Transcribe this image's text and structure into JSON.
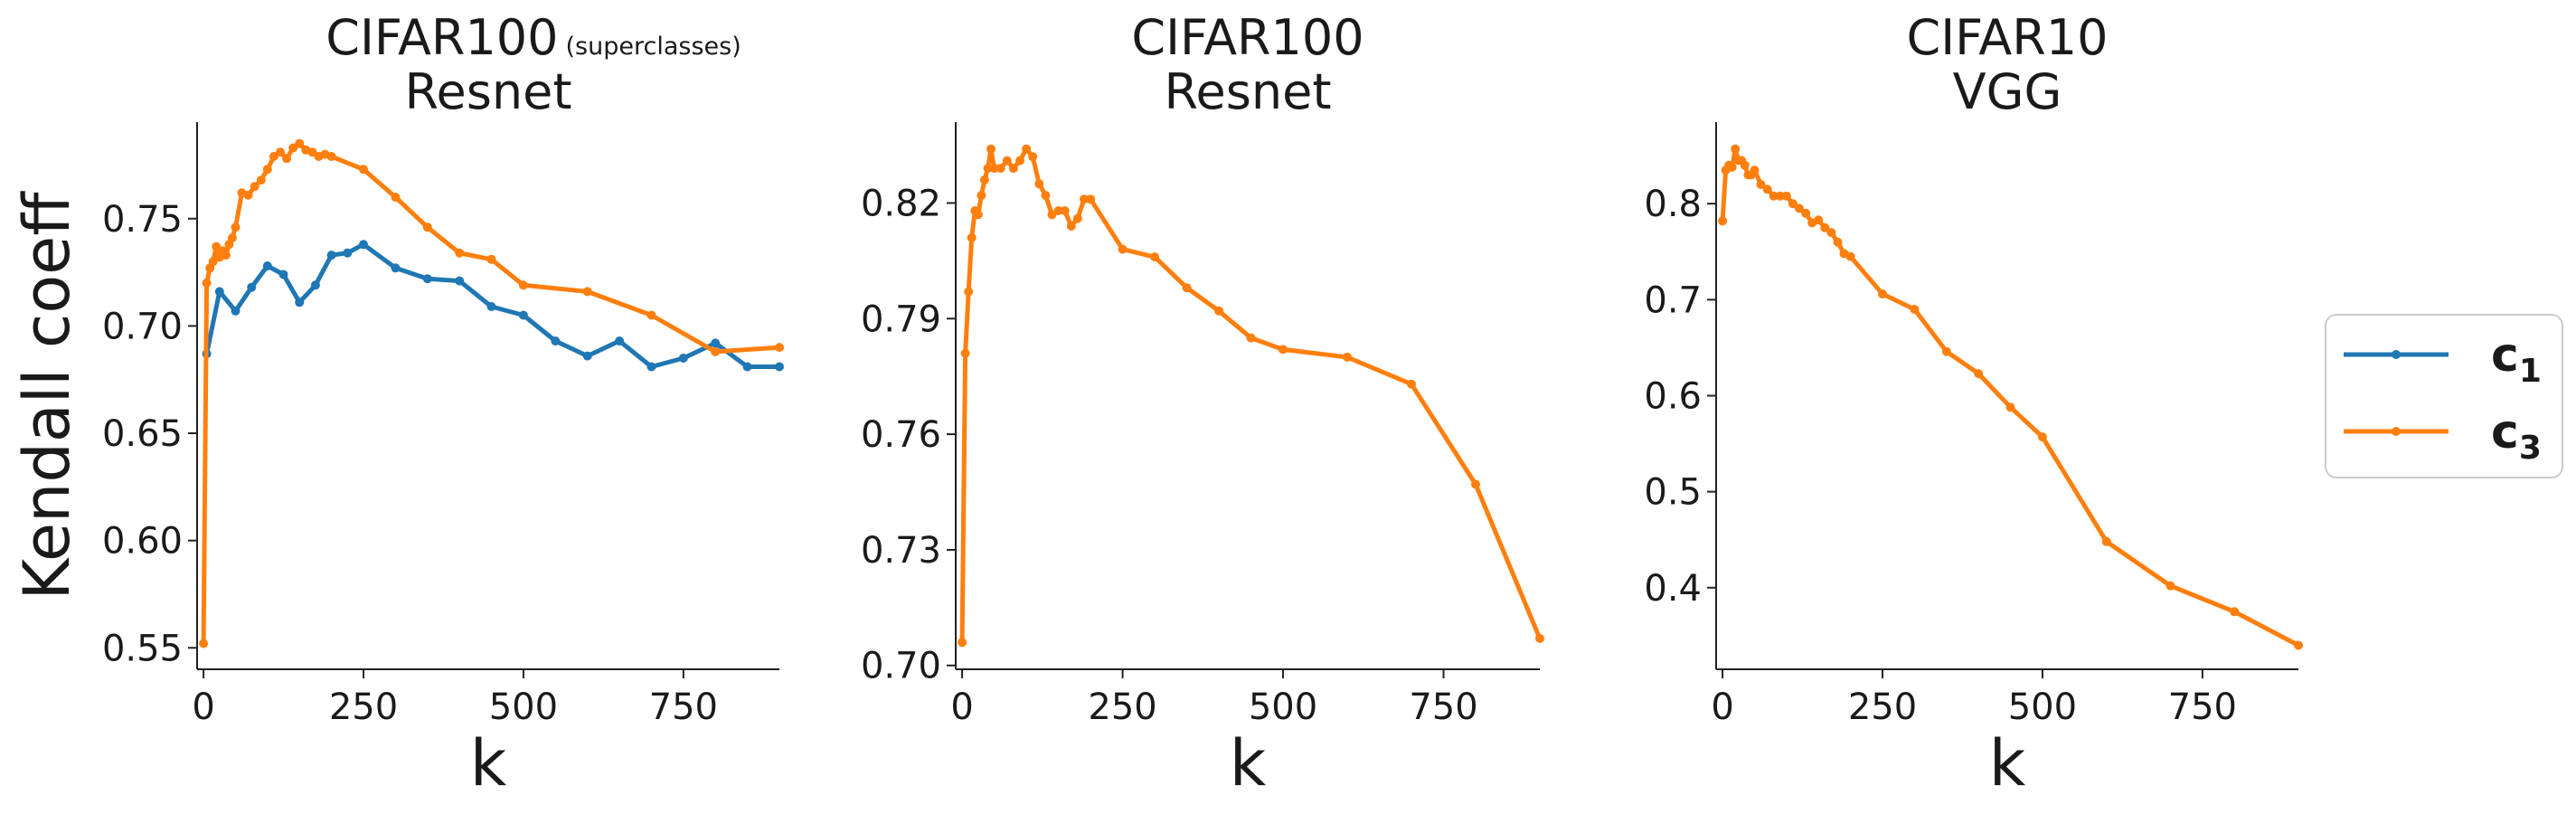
{
  "colors": {
    "c1": "#1f77b4",
    "c3": "#ff7f0e",
    "axis": "#222222"
  },
  "figure": {
    "ylabel": "Kendall coeff"
  },
  "legend": {
    "placement": "right",
    "entries": [
      {
        "key": "c1",
        "base": "c",
        "sub": "1"
      },
      {
        "key": "c3",
        "base": "c",
        "sub": "3"
      }
    ]
  },
  "chart_data": [
    {
      "type": "line",
      "title": "CIFAR100",
      "title_suffix": "(superclasses)",
      "subtitle": "Resnet",
      "xlabel": "k",
      "xlim": [
        -10,
        900
      ],
      "ylim": [
        0.54,
        0.795
      ],
      "xticks": [
        0,
        250,
        500,
        750
      ],
      "yticks": [
        0.55,
        0.6,
        0.65,
        0.7,
        0.75
      ],
      "ytick_labels": [
        "0.55",
        "0.60",
        "0.65",
        "0.70",
        "0.75"
      ],
      "series": [
        {
          "key": "c1",
          "x": [
            5,
            25,
            50,
            75,
            100,
            125,
            150,
            175,
            200,
            225,
            250,
            300,
            350,
            400,
            450,
            500,
            550,
            600,
            650,
            700,
            750,
            800,
            850,
            900
          ],
          "y": [
            0.687,
            0.716,
            0.707,
            0.718,
            0.728,
            0.724,
            0.711,
            0.719,
            0.733,
            0.734,
            0.738,
            0.727,
            0.722,
            0.721,
            0.709,
            0.705,
            0.693,
            0.686,
            0.693,
            0.681,
            0.685,
            0.692,
            0.681,
            0.681
          ]
        },
        {
          "key": "c3",
          "x": [
            0,
            5,
            10,
            15,
            20,
            25,
            30,
            35,
            40,
            45,
            50,
            60,
            70,
            80,
            90,
            100,
            110,
            120,
            130,
            140,
            150,
            160,
            170,
            180,
            190,
            200,
            250,
            300,
            350,
            400,
            450,
            500,
            600,
            700,
            800,
            900
          ],
          "y": [
            0.552,
            0.72,
            0.727,
            0.73,
            0.737,
            0.732,
            0.735,
            0.733,
            0.738,
            0.741,
            0.746,
            0.762,
            0.761,
            0.765,
            0.768,
            0.773,
            0.779,
            0.781,
            0.778,
            0.783,
            0.785,
            0.782,
            0.781,
            0.779,
            0.78,
            0.779,
            0.773,
            0.76,
            0.746,
            0.734,
            0.731,
            0.719,
            0.716,
            0.705,
            0.688,
            0.69
          ]
        }
      ]
    },
    {
      "type": "line",
      "title": "CIFAR100",
      "subtitle": "Resnet",
      "xlabel": "k",
      "xlim": [
        -10,
        900
      ],
      "ylim": [
        0.699,
        0.841
      ],
      "xticks": [
        0,
        250,
        500,
        750
      ],
      "yticks": [
        0.7,
        0.73,
        0.76,
        0.79,
        0.82
      ],
      "ytick_labels": [
        "0.70",
        "0.73",
        "0.76",
        "0.79",
        "0.82"
      ],
      "series": [
        {
          "key": "c3",
          "x": [
            0,
            5,
            10,
            15,
            20,
            25,
            30,
            35,
            40,
            45,
            50,
            60,
            70,
            80,
            90,
            100,
            110,
            120,
            130,
            140,
            150,
            160,
            170,
            180,
            190,
            200,
            250,
            300,
            350,
            400,
            450,
            500,
            600,
            700,
            800,
            900
          ],
          "y": [
            0.706,
            0.781,
            0.797,
            0.811,
            0.818,
            0.817,
            0.822,
            0.826,
            0.829,
            0.834,
            0.829,
            0.829,
            0.831,
            0.829,
            0.831,
            0.834,
            0.832,
            0.825,
            0.822,
            0.817,
            0.818,
            0.818,
            0.814,
            0.816,
            0.821,
            0.821,
            0.808,
            0.806,
            0.798,
            0.792,
            0.785,
            0.782,
            0.78,
            0.773,
            0.747,
            0.707
          ]
        }
      ]
    },
    {
      "type": "line",
      "title": "CIFAR10",
      "subtitle": "VGG",
      "xlabel": "k",
      "xlim": [
        -10,
        900
      ],
      "ylim": [
        0.315,
        0.885
      ],
      "xticks": [
        0,
        250,
        500,
        750
      ],
      "yticks": [
        0.4,
        0.5,
        0.6,
        0.7,
        0.8
      ],
      "ytick_labels": [
        "0.4",
        "0.5",
        "0.6",
        "0.7",
        "0.8"
      ],
      "series": [
        {
          "key": "c3",
          "x": [
            0,
            5,
            10,
            15,
            20,
            25,
            30,
            35,
            40,
            45,
            50,
            60,
            70,
            80,
            90,
            100,
            110,
            120,
            130,
            140,
            150,
            160,
            170,
            180,
            190,
            200,
            250,
            300,
            350,
            400,
            450,
            500,
            600,
            700,
            800,
            900
          ],
          "y": [
            0.782,
            0.835,
            0.84,
            0.838,
            0.857,
            0.845,
            0.845,
            0.84,
            0.83,
            0.83,
            0.835,
            0.82,
            0.815,
            0.808,
            0.808,
            0.808,
            0.8,
            0.795,
            0.79,
            0.78,
            0.783,
            0.775,
            0.77,
            0.76,
            0.748,
            0.745,
            0.706,
            0.69,
            0.646,
            0.623,
            0.588,
            0.557,
            0.448,
            0.402,
            0.375,
            0.34
          ]
        }
      ]
    }
  ]
}
